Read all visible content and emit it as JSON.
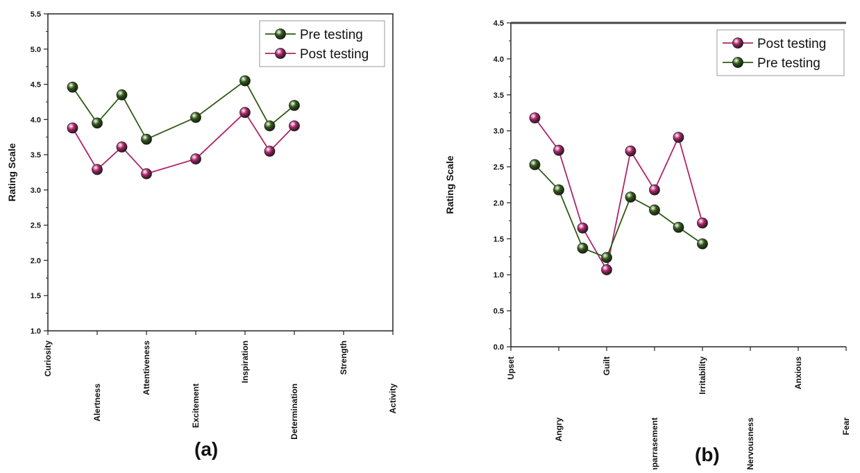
{
  "chart_data": [
    {
      "type": "line",
      "categories": [
        "Curiosity",
        "Alertness",
        "Attentiveness",
        "Excitement",
        "Inspiration",
        "Determination",
        "Strength",
        "Activity"
      ],
      "ylabel": "Rating Scale",
      "xlabel": "",
      "ylim": [
        1.0,
        5.5
      ],
      "yticks": [
        "1.0",
        "1.5",
        "2.0",
        "2.5",
        "3.0",
        "3.5",
        "4.0",
        "4.5",
        "5.0",
        "5.5"
      ],
      "legend_position": "top-right",
      "grid": false,
      "series": [
        {
          "name": "Pre testing",
          "color": "#2e5a12",
          "x": [
            1.5,
            2,
            2.5,
            3,
            4,
            5,
            5.5,
            6
          ],
          "values": [
            4.46,
            3.95,
            4.35,
            3.72,
            4.03,
            4.55,
            3.91,
            4.2
          ]
        },
        {
          "name": "Post testing",
          "color": "#b0226a",
          "x": [
            1.5,
            2,
            2.5,
            3,
            4,
            5,
            5.5,
            6
          ],
          "values": [
            3.88,
            3.29,
            3.61,
            3.23,
            3.44,
            4.1,
            3.55,
            3.91
          ]
        }
      ],
      "caption": "(a)"
    },
    {
      "type": "line",
      "categories": [
        "Upset",
        "Angry",
        "Guilt",
        "Emparrasement",
        "Irritability",
        "Nervousness",
        "Anxious",
        "Fear"
      ],
      "ylabel": "Rating Scale",
      "xlabel": "",
      "ylim": [
        0.0,
        4.5
      ],
      "yticks": [
        "0.0",
        "0.5",
        "1.0",
        "1.5",
        "2.0",
        "2.5",
        "3.0",
        "3.5",
        "4.0",
        "4.5"
      ],
      "legend_position": "top-right",
      "grid": false,
      "series": [
        {
          "name": "Post testing",
          "color": "#b0226a",
          "x": [
            1.5,
            2,
            2.5,
            3,
            3.5,
            4,
            4.5,
            5
          ],
          "values": [
            3.18,
            2.73,
            1.65,
            1.07,
            2.72,
            2.18,
            2.91,
            1.72
          ]
        },
        {
          "name": "Pre testing",
          "color": "#2e5a12",
          "x": [
            1.5,
            2,
            2.5,
            3,
            3.5,
            4,
            4.5,
            5
          ],
          "values": [
            2.53,
            2.18,
            1.37,
            1.24,
            2.08,
            1.9,
            1.66,
            1.43
          ]
        }
      ],
      "caption": "(b)"
    }
  ]
}
